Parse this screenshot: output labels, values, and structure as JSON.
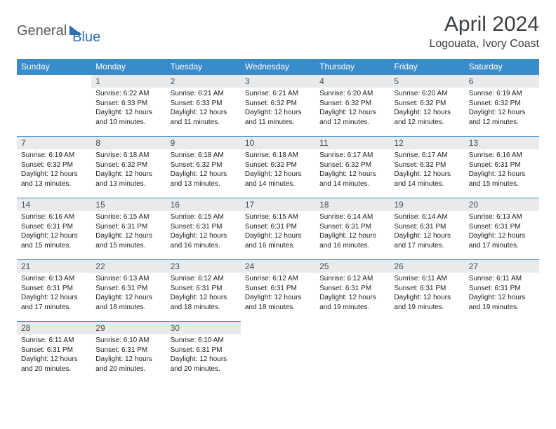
{
  "brand": {
    "part1": "General",
    "part2": "Blue"
  },
  "title": "April 2024",
  "location": "Logouata, Ivory Coast",
  "colors": {
    "header_bg": "#3a8bc9",
    "header_fg": "#ffffff",
    "daynum_bg": "#e9eaeb",
    "rule": "#3a8bc9",
    "brand_blue": "#2f6fb0",
    "brand_gray": "#555a5e"
  },
  "weekdays": [
    "Sunday",
    "Monday",
    "Tuesday",
    "Wednesday",
    "Thursday",
    "Friday",
    "Saturday"
  ],
  "weeks": [
    [
      null,
      {
        "n": "1",
        "sunrise": "Sunrise: 6:22 AM",
        "sunset": "Sunset: 6:33 PM",
        "day": "Daylight: 12 hours and 10 minutes."
      },
      {
        "n": "2",
        "sunrise": "Sunrise: 6:21 AM",
        "sunset": "Sunset: 6:33 PM",
        "day": "Daylight: 12 hours and 11 minutes."
      },
      {
        "n": "3",
        "sunrise": "Sunrise: 6:21 AM",
        "sunset": "Sunset: 6:32 PM",
        "day": "Daylight: 12 hours and 11 minutes."
      },
      {
        "n": "4",
        "sunrise": "Sunrise: 6:20 AM",
        "sunset": "Sunset: 6:32 PM",
        "day": "Daylight: 12 hours and 12 minutes."
      },
      {
        "n": "5",
        "sunrise": "Sunrise: 6:20 AM",
        "sunset": "Sunset: 6:32 PM",
        "day": "Daylight: 12 hours and 12 minutes."
      },
      {
        "n": "6",
        "sunrise": "Sunrise: 6:19 AM",
        "sunset": "Sunset: 6:32 PM",
        "day": "Daylight: 12 hours and 12 minutes."
      }
    ],
    [
      {
        "n": "7",
        "sunrise": "Sunrise: 6:19 AM",
        "sunset": "Sunset: 6:32 PM",
        "day": "Daylight: 12 hours and 13 minutes."
      },
      {
        "n": "8",
        "sunrise": "Sunrise: 6:18 AM",
        "sunset": "Sunset: 6:32 PM",
        "day": "Daylight: 12 hours and 13 minutes."
      },
      {
        "n": "9",
        "sunrise": "Sunrise: 6:18 AM",
        "sunset": "Sunset: 6:32 PM",
        "day": "Daylight: 12 hours and 13 minutes."
      },
      {
        "n": "10",
        "sunrise": "Sunrise: 6:18 AM",
        "sunset": "Sunset: 6:32 PM",
        "day": "Daylight: 12 hours and 14 minutes."
      },
      {
        "n": "11",
        "sunrise": "Sunrise: 6:17 AM",
        "sunset": "Sunset: 6:32 PM",
        "day": "Daylight: 12 hours and 14 minutes."
      },
      {
        "n": "12",
        "sunrise": "Sunrise: 6:17 AM",
        "sunset": "Sunset: 6:32 PM",
        "day": "Daylight: 12 hours and 14 minutes."
      },
      {
        "n": "13",
        "sunrise": "Sunrise: 6:16 AM",
        "sunset": "Sunset: 6:31 PM",
        "day": "Daylight: 12 hours and 15 minutes."
      }
    ],
    [
      {
        "n": "14",
        "sunrise": "Sunrise: 6:16 AM",
        "sunset": "Sunset: 6:31 PM",
        "day": "Daylight: 12 hours and 15 minutes."
      },
      {
        "n": "15",
        "sunrise": "Sunrise: 6:15 AM",
        "sunset": "Sunset: 6:31 PM",
        "day": "Daylight: 12 hours and 15 minutes."
      },
      {
        "n": "16",
        "sunrise": "Sunrise: 6:15 AM",
        "sunset": "Sunset: 6:31 PM",
        "day": "Daylight: 12 hours and 16 minutes."
      },
      {
        "n": "17",
        "sunrise": "Sunrise: 6:15 AM",
        "sunset": "Sunset: 6:31 PM",
        "day": "Daylight: 12 hours and 16 minutes."
      },
      {
        "n": "18",
        "sunrise": "Sunrise: 6:14 AM",
        "sunset": "Sunset: 6:31 PM",
        "day": "Daylight: 12 hours and 16 minutes."
      },
      {
        "n": "19",
        "sunrise": "Sunrise: 6:14 AM",
        "sunset": "Sunset: 6:31 PM",
        "day": "Daylight: 12 hours and 17 minutes."
      },
      {
        "n": "20",
        "sunrise": "Sunrise: 6:13 AM",
        "sunset": "Sunset: 6:31 PM",
        "day": "Daylight: 12 hours and 17 minutes."
      }
    ],
    [
      {
        "n": "21",
        "sunrise": "Sunrise: 6:13 AM",
        "sunset": "Sunset: 6:31 PM",
        "day": "Daylight: 12 hours and 17 minutes."
      },
      {
        "n": "22",
        "sunrise": "Sunrise: 6:13 AM",
        "sunset": "Sunset: 6:31 PM",
        "day": "Daylight: 12 hours and 18 minutes."
      },
      {
        "n": "23",
        "sunrise": "Sunrise: 6:12 AM",
        "sunset": "Sunset: 6:31 PM",
        "day": "Daylight: 12 hours and 18 minutes."
      },
      {
        "n": "24",
        "sunrise": "Sunrise: 6:12 AM",
        "sunset": "Sunset: 6:31 PM",
        "day": "Daylight: 12 hours and 18 minutes."
      },
      {
        "n": "25",
        "sunrise": "Sunrise: 6:12 AM",
        "sunset": "Sunset: 6:31 PM",
        "day": "Daylight: 12 hours and 19 minutes."
      },
      {
        "n": "26",
        "sunrise": "Sunrise: 6:11 AM",
        "sunset": "Sunset: 6:31 PM",
        "day": "Daylight: 12 hours and 19 minutes."
      },
      {
        "n": "27",
        "sunrise": "Sunrise: 6:11 AM",
        "sunset": "Sunset: 6:31 PM",
        "day": "Daylight: 12 hours and 19 minutes."
      }
    ],
    [
      {
        "n": "28",
        "sunrise": "Sunrise: 6:11 AM",
        "sunset": "Sunset: 6:31 PM",
        "day": "Daylight: 12 hours and 20 minutes."
      },
      {
        "n": "29",
        "sunrise": "Sunrise: 6:10 AM",
        "sunset": "Sunset: 6:31 PM",
        "day": "Daylight: 12 hours and 20 minutes."
      },
      {
        "n": "30",
        "sunrise": "Sunrise: 6:10 AM",
        "sunset": "Sunset: 6:31 PM",
        "day": "Daylight: 12 hours and 20 minutes."
      },
      null,
      null,
      null,
      null
    ]
  ]
}
